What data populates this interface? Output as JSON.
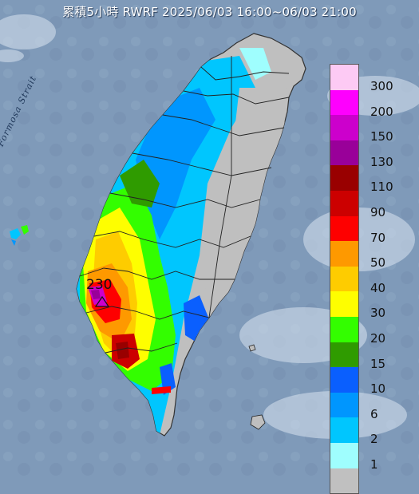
{
  "header": {
    "title": "累積5小時 RWRF 2025/06/03 16:00~06/03 21:00"
  },
  "map": {
    "strait_label": "Formosa Strait",
    "peak": {
      "value": "230",
      "marker": "triangle-marker"
    },
    "colors": {
      "sea": "#7f9ab9",
      "land_dry": "#bfbfbf",
      "border": "#333333"
    }
  },
  "legend": {
    "items": [
      {
        "label": "300",
        "color": "#fdcaf4"
      },
      {
        "label": "200",
        "color": "#fe00fe"
      },
      {
        "label": "150",
        "color": "#cc00cc"
      },
      {
        "label": "130",
        "color": "#990099"
      },
      {
        "label": "110",
        "color": "#990000"
      },
      {
        "label": "90",
        "color": "#cc0000"
      },
      {
        "label": "70",
        "color": "#fe0000"
      },
      {
        "label": "50",
        "color": "#fe9900"
      },
      {
        "label": "40",
        "color": "#fecc00"
      },
      {
        "label": "30",
        "color": "#fefe00"
      },
      {
        "label": "20",
        "color": "#33fe00"
      },
      {
        "label": "15",
        "color": "#2f9b00"
      },
      {
        "label": "10",
        "color": "#0a5ffe"
      },
      {
        "label": "6",
        "color": "#0096fe"
      },
      {
        "label": "2",
        "color": "#00c6fe"
      },
      {
        "label": "1",
        "color": "#9ffefe"
      },
      {
        "label": "",
        "color": "#c0c0c0"
      }
    ]
  }
}
